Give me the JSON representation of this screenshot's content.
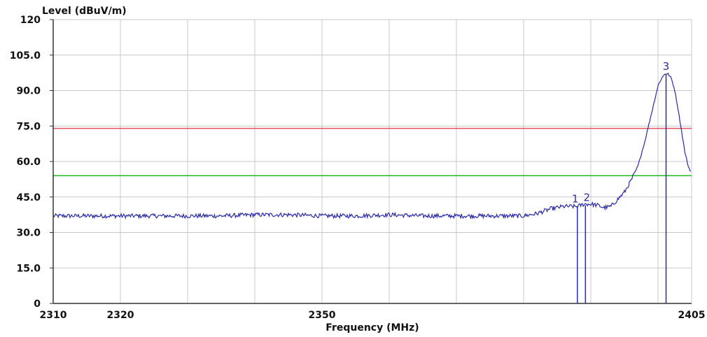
{
  "chart_data": {
    "type": "line",
    "ylabel": "Level (dBuV/m)",
    "xlabel": "Frequency (MHz)",
    "xlim": [
      2310,
      2405
    ],
    "ylim": [
      0,
      120
    ],
    "x_ticks": [
      {
        "value": 2310,
        "label": "2310"
      },
      {
        "value": 2320,
        "label": "2320"
      },
      {
        "value": 2350,
        "label": "2350"
      },
      {
        "value": 2405,
        "label": "2405"
      }
    ],
    "x_grid": [
      2310,
      2320,
      2330,
      2340,
      2350,
      2360,
      2370,
      2380,
      2390,
      2400,
      2405
    ],
    "y_ticks": [
      {
        "value": 0,
        "label": "0"
      },
      {
        "value": 15,
        "label": "15.0"
      },
      {
        "value": 30,
        "label": "30.0"
      },
      {
        "value": 45,
        "label": "45.0"
      },
      {
        "value": 60,
        "label": "60.0"
      },
      {
        "value": 75,
        "label": "75.0"
      },
      {
        "value": 90,
        "label": "90.0"
      },
      {
        "value": 105,
        "label": "105.0"
      },
      {
        "value": 120,
        "label": "120"
      }
    ],
    "grid": true,
    "limit_lines": [
      {
        "value": 74,
        "color": "#e05060"
      },
      {
        "value": 54,
        "color": "#22bb22"
      }
    ],
    "series": [
      {
        "color": "#2a2aa6",
        "x": [
          2310,
          2315,
          2320,
          2325,
          2330,
          2335,
          2340,
          2345,
          2350,
          2355,
          2360,
          2365,
          2370,
          2375,
          2380,
          2382,
          2384,
          2386,
          2388,
          2389,
          2390,
          2391,
          2392,
          2393,
          2394,
          2395,
          2396,
          2397,
          2398,
          2398.5,
          2399,
          2399.5,
          2400,
          2400.5,
          2401,
          2401.5,
          2402,
          2402.5,
          2403,
          2403.5,
          2404,
          2404.5,
          2405
        ],
        "y": [
          37,
          37,
          37,
          37,
          37,
          37,
          37.5,
          37.5,
          37,
          37,
          37.5,
          37,
          37,
          37,
          37,
          38,
          40,
          41,
          41,
          42,
          42,
          41.5,
          40.5,
          41,
          44,
          47,
          52,
          58,
          68,
          74,
          80,
          86,
          92,
          95,
          97,
          97,
          95,
          90,
          82,
          73,
          64,
          58,
          55
        ]
      }
    ],
    "markers": [
      {
        "label": "1",
        "x": 2388.0,
        "y": 41
      },
      {
        "label": "2",
        "x": 2389.2,
        "y": 41.5
      },
      {
        "label": "3",
        "x": 2401.2,
        "y": 97
      }
    ]
  }
}
